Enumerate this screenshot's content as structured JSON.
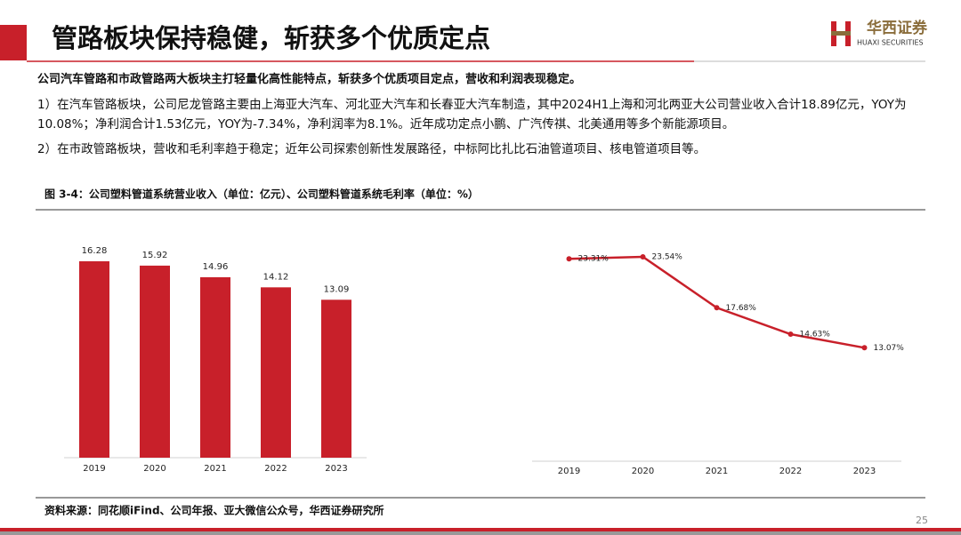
{
  "header": {
    "title": "管路板块保持稳健，斩获多个优质定点",
    "logo_cn": "华西证券",
    "logo_en": "HUAXI SECURITIES"
  },
  "summary": "公司汽车管路和市政管路两大板块主打轻量化高性能特点，斩获多个优质项目定点，营收和利润表现稳定。",
  "bullets": [
    "1）在汽车管路板块，公司尼龙管路主要由上海亚大汽车、河北亚大汽车和长春亚大汽车制造，其中2024H1上海和河北两亚大公司营业收入合计18.89亿元，YOY为10.08%；净利润合计1.53亿元，YOY为-7.34%，净利润率为8.1%。近年成功定点小鹏、广汽传祺、北美通用等多个新能源项目。",
    "2）在市政管路板块，营收和毛利率趋于稳定；近年公司探索创新性发展路径，中标阿比扎比石油管道项目、核电管道项目等。"
  ],
  "figure_title": "图 3-4：公司塑料管道系统营业收入（单位：亿元）、公司塑料管道系统毛利率（单位：%）",
  "chart_data": [
    {
      "type": "bar",
      "categories": [
        "2019",
        "2020",
        "2021",
        "2022",
        "2023"
      ],
      "values": [
        16.28,
        15.92,
        14.96,
        14.12,
        13.09
      ],
      "color": "#c8202a"
    },
    {
      "type": "line",
      "categories": [
        "2019",
        "2020",
        "2021",
        "2022",
        "2023"
      ],
      "values": [
        23.31,
        23.54,
        17.68,
        14.63,
        13.07
      ],
      "value_labels": [
        "23.31%",
        "23.54%",
        "17.68%",
        "14.63%",
        "13.07%"
      ],
      "color": "#c8202a"
    }
  ],
  "source": "资料来源：同花顺iFind、公司年报、亚大微信公众号，华西证券研究所",
  "page_number": "25"
}
